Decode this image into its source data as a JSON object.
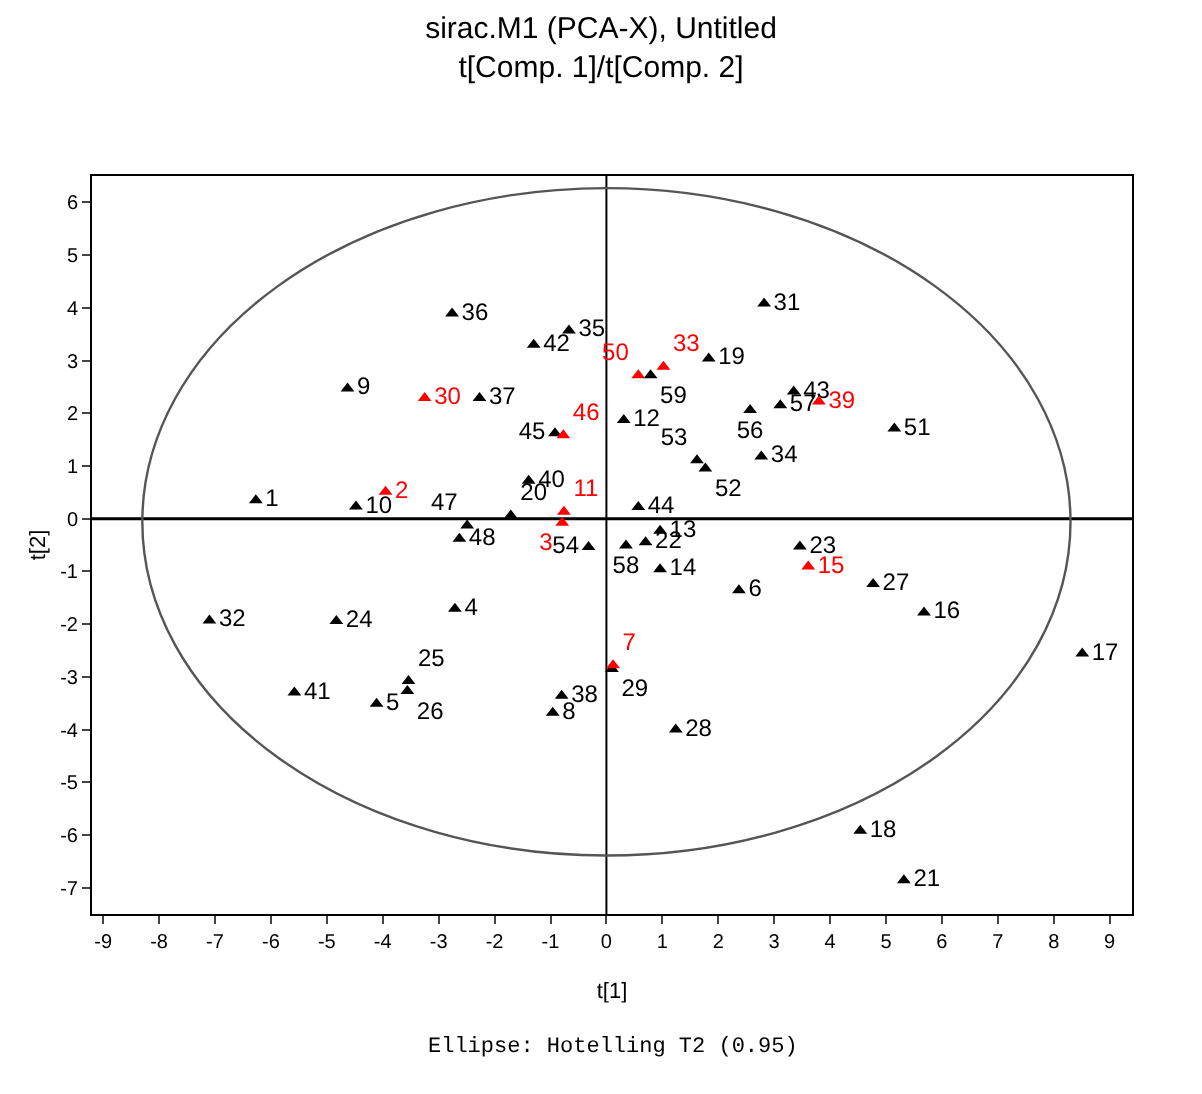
{
  "chart_data": {
    "type": "scatter",
    "title": "sirac.M1 (PCA-X), Untitled",
    "subtitle": "t[Comp. 1]/t[Comp. 2]",
    "xlabel": "t[1]",
    "ylabel": "t[2]",
    "xlim": [
      -9.2,
      9.4
    ],
    "ylim": [
      -7.5,
      6.5
    ],
    "xticks": [
      -9,
      -8,
      -7,
      -6,
      -5,
      -4,
      -3,
      -2,
      -1,
      0,
      1,
      2,
      3,
      4,
      5,
      6,
      7,
      8,
      9
    ],
    "yticks": [
      -7,
      -6,
      -5,
      -4,
      -3,
      -2,
      -1,
      0,
      1,
      2,
      3,
      4,
      5,
      6
    ],
    "grid": false,
    "marker": "triangle",
    "ref_lines": [
      {
        "axis": "x",
        "value": 0,
        "color": "#000000"
      },
      {
        "axis": "y",
        "value": 0,
        "color": "#000000"
      }
    ],
    "annotations": [
      "Ellipse: Hotelling T2 (0.95)"
    ],
    "series": [
      {
        "type": "scatter",
        "name": "1",
        "color": "#000000",
        "x": [
          -6.27
        ],
        "values": [
          0.35
        ]
      },
      {
        "type": "scatter",
        "name": "10",
        "color": "#000000",
        "x": [
          -4.48
        ],
        "values": [
          0.23
        ]
      },
      {
        "name": "9",
        "color": "#000000",
        "x": [
          -4.63
        ],
        "values": [
          2.47
        ]
      },
      {
        "name": "37",
        "color": "#000000",
        "x": [
          -2.27
        ],
        "values": [
          2.29
        ]
      },
      {
        "name": "36",
        "color": "#000000",
        "x": [
          -2.76
        ],
        "values": [
          3.89
        ]
      },
      {
        "name": "42",
        "color": "#000000",
        "x": [
          -1.3
        ],
        "values": [
          3.3
        ]
      },
      {
        "name": "35",
        "color": "#000000",
        "x": [
          -0.67
        ],
        "values": [
          3.57
        ]
      },
      {
        "name": "45",
        "color": "#000000",
        "x": [
          -0.92
        ],
        "values": [
          1.62
        ]
      },
      {
        "name": "40",
        "color": "#000000",
        "x": [
          -1.39
        ],
        "values": [
          0.72
        ]
      },
      {
        "name": "20",
        "color": "#000000",
        "x": [
          -1.71
        ],
        "values": [
          0.06
        ]
      },
      {
        "name": "47",
        "color": "#000000",
        "x": [
          -2.49
        ],
        "values": [
          -0.13
        ]
      },
      {
        "name": "48",
        "color": "#000000",
        "x": [
          -2.63
        ],
        "values": [
          -0.38
        ]
      },
      {
        "name": "54",
        "color": "#000000",
        "x": [
          -0.32
        ],
        "values": [
          -0.54
        ]
      },
      {
        "name": "58",
        "color": "#000000",
        "x": [
          0.35
        ],
        "values": [
          -0.51
        ]
      },
      {
        "name": "22",
        "color": "#000000",
        "x": [
          0.7
        ],
        "values": [
          -0.45
        ]
      },
      {
        "name": "31",
        "color": "#000000",
        "x": [
          2.82
        ],
        "values": [
          4.08
        ]
      },
      {
        "name": "19",
        "color": "#000000",
        "x": [
          1.83
        ],
        "values": [
          3.04
        ]
      },
      {
        "name": "59",
        "color": "#000000",
        "x": [
          0.79
        ],
        "values": [
          2.72
        ]
      },
      {
        "name": "12",
        "color": "#000000",
        "x": [
          0.31
        ],
        "values": [
          1.87
        ]
      },
      {
        "name": "56",
        "color": "#000000",
        "x": [
          2.57
        ],
        "values": [
          2.06
        ]
      },
      {
        "name": "57",
        "color": "#000000",
        "x": [
          3.11
        ],
        "values": [
          2.15
        ]
      },
      {
        "name": "43",
        "color": "#000000",
        "x": [
          3.35
        ],
        "values": [
          2.41
        ]
      },
      {
        "name": "51",
        "color": "#000000",
        "x": [
          5.15
        ],
        "values": [
          1.71
        ]
      },
      {
        "name": "53",
        "color": "#000000",
        "x": [
          1.62
        ],
        "values": [
          1.11
        ]
      },
      {
        "name": "52",
        "color": "#000000",
        "x": [
          1.77
        ],
        "values": [
          0.95
        ]
      },
      {
        "name": "34",
        "color": "#000000",
        "x": [
          2.77
        ],
        "values": [
          1.18
        ]
      },
      {
        "name": "44",
        "color": "#000000",
        "x": [
          0.57
        ],
        "values": [
          0.22
        ]
      },
      {
        "name": "13",
        "color": "#000000",
        "x": [
          0.96
        ],
        "values": [
          -0.23
        ]
      },
      {
        "name": "23",
        "color": "#000000",
        "x": [
          3.46
        ],
        "values": [
          -0.53
        ]
      },
      {
        "name": "27",
        "color": "#000000",
        "x": [
          4.77
        ],
        "values": [
          -1.24
        ]
      },
      {
        "name": "16",
        "color": "#000000",
        "x": [
          5.68
        ],
        "values": [
          -1.78
        ]
      },
      {
        "name": "6",
        "color": "#000000",
        "x": [
          2.37
        ],
        "values": [
          -1.36
        ]
      },
      {
        "name": "14",
        "color": "#000000",
        "x": [
          0.96
        ],
        "values": [
          -0.96
        ]
      },
      {
        "name": "17",
        "color": "#000000",
        "x": [
          8.51
        ],
        "values": [
          -2.56
        ]
      },
      {
        "name": "29",
        "color": "#000000",
        "x": [
          0.1
        ],
        "values": [
          -2.85
        ]
      },
      {
        "name": "28",
        "color": "#000000",
        "x": [
          1.24
        ],
        "values": [
          -4.0
        ]
      },
      {
        "name": "18",
        "color": "#000000",
        "x": [
          4.54
        ],
        "values": [
          -5.92
        ]
      },
      {
        "name": "21",
        "color": "#000000",
        "x": [
          5.32
        ],
        "values": [
          -6.86
        ]
      },
      {
        "name": "32",
        "color": "#000000",
        "x": [
          -7.1
        ],
        "values": [
          -1.93
        ]
      },
      {
        "name": "24",
        "color": "#000000",
        "x": [
          -4.83
        ],
        "values": [
          -1.94
        ]
      },
      {
        "name": "4",
        "color": "#000000",
        "x": [
          -2.71
        ],
        "values": [
          -1.71
        ]
      },
      {
        "name": "41",
        "color": "#000000",
        "x": [
          -5.58
        ],
        "values": [
          -3.3
        ]
      },
      {
        "name": "5",
        "color": "#000000",
        "x": [
          -4.11
        ],
        "values": [
          -3.51
        ]
      },
      {
        "name": "25",
        "color": "#000000",
        "x": [
          -3.54
        ],
        "values": [
          -3.08
        ]
      },
      {
        "name": "26",
        "color": "#000000",
        "x": [
          -3.56
        ],
        "values": [
          -3.27
        ]
      },
      {
        "name": "38",
        "color": "#000000",
        "x": [
          -0.8
        ],
        "values": [
          -3.36
        ]
      },
      {
        "name": "8",
        "color": "#000000",
        "x": [
          -0.96
        ],
        "values": [
          -3.68
        ]
      },
      {
        "name": "2",
        "color": "#ff0000",
        "x": [
          -3.95
        ],
        "values": [
          0.51
        ]
      },
      {
        "name": "30",
        "color": "#ff0000",
        "x": [
          -3.25
        ],
        "values": [
          2.29
        ]
      },
      {
        "name": "46",
        "color": "#ff0000",
        "x": [
          -0.77
        ],
        "values": [
          1.58
        ]
      },
      {
        "name": "11",
        "color": "#ff0000",
        "x": [
          -0.76
        ],
        "values": [
          0.13
        ]
      },
      {
        "name": "3",
        "color": "#ff0000",
        "x": [
          -0.79
        ],
        "values": [
          -0.08
        ]
      },
      {
        "name": "50",
        "color": "#ff0000",
        "x": [
          0.57
        ],
        "values": [
          2.72
        ]
      },
      {
        "name": "33",
        "color": "#ff0000",
        "x": [
          1.02
        ],
        "values": [
          2.88
        ]
      },
      {
        "name": "39",
        "color": "#ff0000",
        "x": [
          3.8
        ],
        "values": [
          2.22
        ]
      },
      {
        "name": "15",
        "color": "#ff0000",
        "x": [
          3.61
        ],
        "values": [
          -0.91
        ]
      },
      {
        "name": "7",
        "color": "#ff0000",
        "x": [
          0.12
        ],
        "values": [
          -2.78
        ]
      }
    ]
  }
}
